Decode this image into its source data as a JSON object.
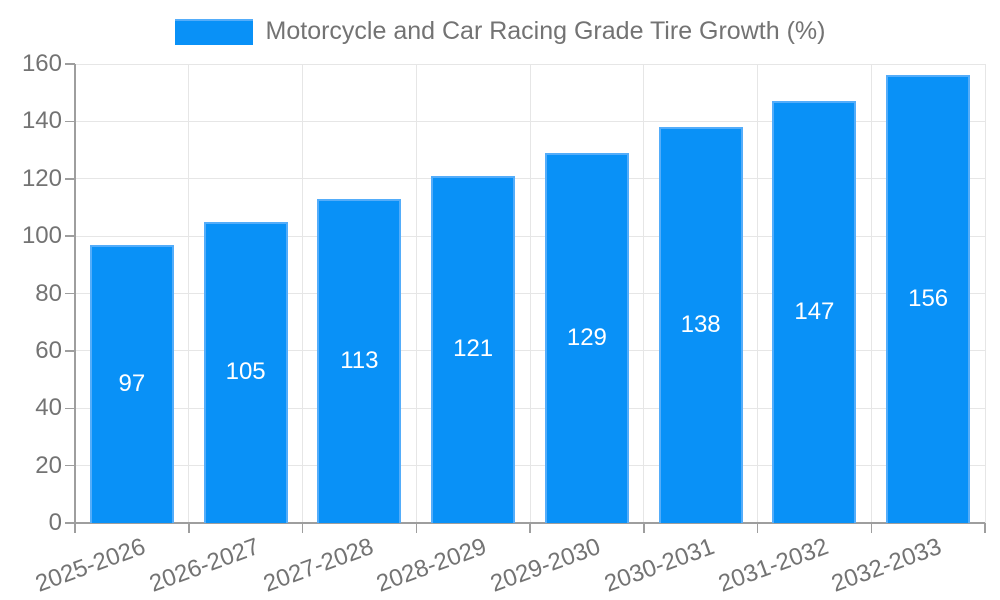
{
  "chart_data": {
    "type": "bar",
    "title": "Motorcycle and Car Racing Grade Tire Growth (%)",
    "categories": [
      "2025-2026",
      "2026-2027",
      "2027-2028",
      "2028-2029",
      "2029-2030",
      "2030-2031",
      "2031-2032",
      "2032-2033"
    ],
    "values": [
      97,
      105,
      113,
      121,
      129,
      138,
      147,
      156
    ],
    "xlabel": "",
    "ylabel": "",
    "ylim": [
      0,
      160
    ],
    "ytick_step": 20,
    "grid": true,
    "legend_position": "top-center",
    "colors": {
      "bar_fill": "#0991f7",
      "bar_border": "#54adfa",
      "bar_value_label": "#ffffff",
      "axis": "#9e9e9e",
      "grid": "#e6e6e6",
      "tick_text": "#737373",
      "background": "#ffffff"
    }
  }
}
